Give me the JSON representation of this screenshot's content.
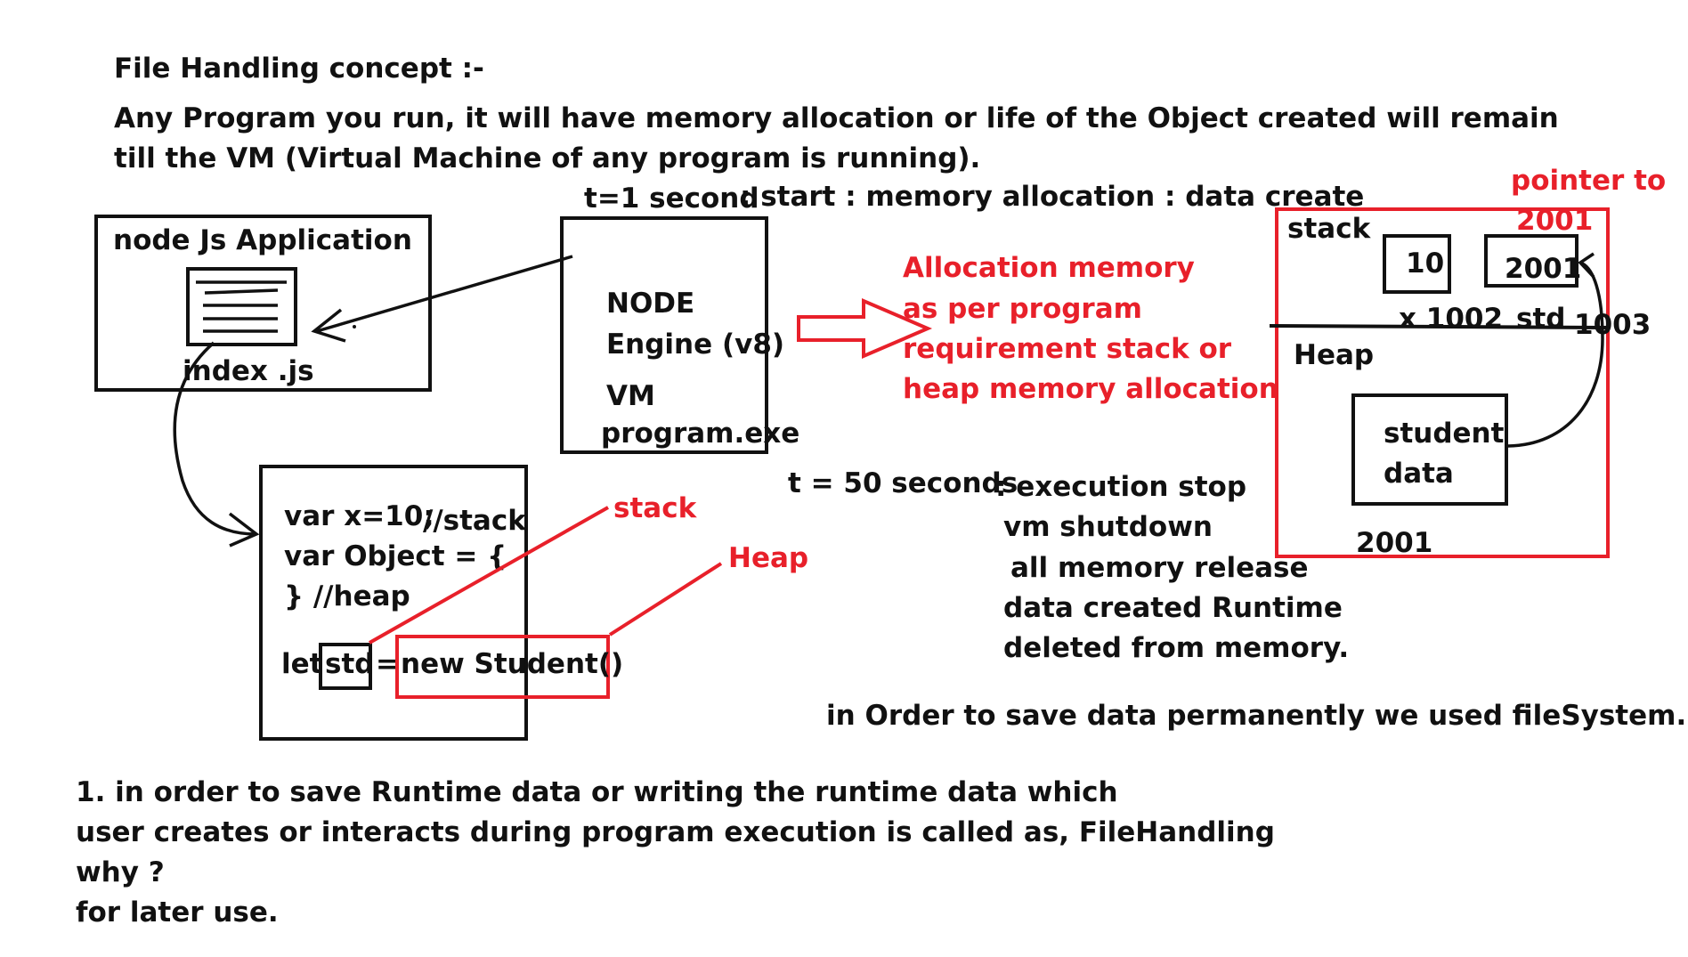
{
  "header": {
    "title": "File Handling concept :-",
    "intro_line1": "Any Program you run, it will have memory allocation or life of the Object created will remain",
    "intro_line2": "till the VM (Virtual Machine of any program is running)."
  },
  "timeline": {
    "start_time": "t=1 second",
    "start_desc": ": start : memory allocation : data create",
    "end_time": "t = 50 seconds",
    "end_lines": [
      ": execution stop",
      "vm shutdown",
      "all memory release",
      "data created Runtime",
      "deleted from memory."
    ]
  },
  "node_app": {
    "title": "node Js Application",
    "file_label": "index .js"
  },
  "engine": {
    "line1": "NODE",
    "line2": "Engine (v8)",
    "line3": "VM",
    "line4": "program.exe"
  },
  "code": {
    "line1": "var x=10;",
    "comment1": "//stack",
    "line2": "var Object = {",
    "line3": "} //heap",
    "let_kw": "let",
    "var_name": "std",
    "equals": "=",
    "new_expr": "new Student()"
  },
  "annotations": {
    "stack_label": "stack",
    "heap_label": "Heap",
    "allocation_lines": [
      "Allocation memory",
      "as per program",
      "requirement stack or",
      "heap memory allocation"
    ]
  },
  "memory": {
    "pointer_note_line1": "pointer to",
    "pointer_note_line2": "2001",
    "stack_title": "stack",
    "x_value": "10",
    "std_value": "2001",
    "x_label": "x 1002",
    "std_label": "std",
    "std_address": "1003",
    "heap_title": "Heap",
    "heap_obj_line1": "student",
    "heap_obj_line2": "data",
    "heap_address": "2001"
  },
  "conclusion": "in Order to save data permanently we used fileSystem.",
  "footer": {
    "lines": [
      "1. in order to save Runtime data or writing the runtime data which",
      "user creates or interacts during program execution is called as,  FileHandling",
      "why ?",
      "for later use."
    ]
  },
  "colors": {
    "ink": "#111111",
    "accent_red": "#e8202a"
  }
}
